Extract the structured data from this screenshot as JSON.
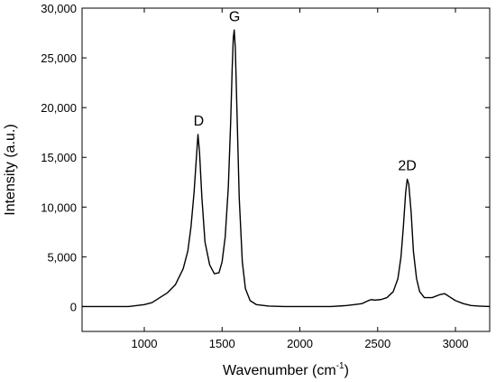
{
  "chart_data": {
    "type": "line",
    "title": "",
    "xlabel_main": "Wavenumber (cm",
    "xlabel_sup": "-1",
    "xlabel_close": ")",
    "ylabel": "Intensity (a.u.)",
    "xlim": [
      600,
      3220
    ],
    "ylim": [
      -2500,
      30000
    ],
    "x_ticks": [
      1000,
      1500,
      2000,
      2500,
      3000
    ],
    "x_tick_labels": [
      "1000",
      "1500",
      "2000",
      "2500",
      "3000"
    ],
    "y_ticks": [
      0,
      5000,
      10000,
      15000,
      20000,
      25000,
      30000
    ],
    "y_tick_labels": [
      "0",
      "5,000",
      "10,000",
      "15,000",
      "20,000",
      "25,000",
      "30,000"
    ],
    "grid": false,
    "annotations": [
      {
        "text": "D",
        "x": 1350,
        "y": 18200
      },
      {
        "text": "G",
        "x": 1580,
        "y": 28700
      },
      {
        "text": "2D",
        "x": 2690,
        "y": 13700
      }
    ],
    "series": [
      {
        "color": "#000000",
        "x": [
          600,
          700,
          800,
          900,
          1000,
          1050,
          1100,
          1150,
          1200,
          1250,
          1280,
          1300,
          1320,
          1335,
          1345,
          1355,
          1370,
          1390,
          1420,
          1450,
          1480,
          1500,
          1520,
          1540,
          1555,
          1565,
          1572,
          1578,
          1585,
          1595,
          1610,
          1630,
          1650,
          1680,
          1720,
          1800,
          1900,
          2000,
          2100,
          2200,
          2300,
          2350,
          2400,
          2440,
          2460,
          2480,
          2520,
          2560,
          2600,
          2630,
          2650,
          2665,
          2680,
          2690,
          2700,
          2715,
          2730,
          2750,
          2770,
          2800,
          2850,
          2900,
          2930,
          2960,
          3000,
          3050,
          3100,
          3150,
          3220
        ],
        "y": [
          0,
          0,
          0,
          0,
          200,
          400,
          900,
          1400,
          2200,
          3800,
          5600,
          8000,
          11500,
          15000,
          17300,
          15500,
          11000,
          6500,
          4200,
          3300,
          3400,
          4500,
          7000,
          12000,
          18500,
          24000,
          27000,
          27800,
          26000,
          20000,
          11000,
          4500,
          1800,
          600,
          200,
          50,
          0,
          0,
          0,
          0,
          100,
          200,
          300,
          600,
          700,
          650,
          700,
          900,
          1500,
          2800,
          5000,
          8000,
          11500,
          12800,
          12300,
          9500,
          5500,
          2800,
          1500,
          900,
          900,
          1200,
          1300,
          1000,
          600,
          300,
          100,
          50,
          0
        ]
      }
    ]
  }
}
